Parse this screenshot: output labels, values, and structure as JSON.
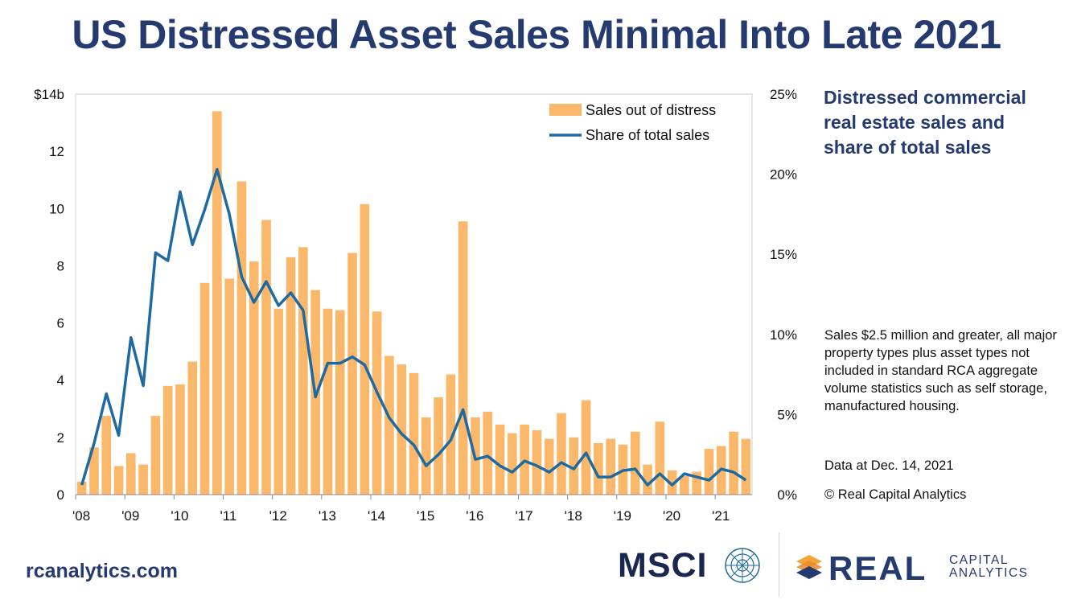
{
  "title": "US Distressed Asset Sales Minimal Into Late 2021",
  "subtitle": "Distressed commercial real estate sales and share of total sales",
  "note": "Sales $2.5 million and greater, all major property types plus asset types not included in standard RCA aggregate volume statistics such as self storage, manufactured housing.",
  "data_date": "Data at Dec. 14, 2021",
  "copyright": "© Real Capital Analytics",
  "website": "rcanalytics.com",
  "logos": {
    "msci": "MSCI",
    "rca_real": "REAL",
    "rca_capital": "CAPITAL",
    "rca_analytics": "ANALYTICS"
  },
  "colors": {
    "bar": "#fbb86a",
    "line": "#1f6aa0",
    "title": "#253a6e",
    "plot_border": "#cccccc"
  },
  "chart_data": {
    "type": "bar",
    "x_tick_labels": [
      "'08",
      "'09",
      "'10",
      "'11",
      "'12",
      "'13",
      "'14",
      "'15",
      "'16",
      "'17",
      "'18",
      "'19",
      "'20",
      "'21"
    ],
    "y_left": {
      "ylim": [
        0,
        14
      ],
      "tick_labels": [
        "0",
        "2",
        "4",
        "6",
        "8",
        "10",
        "12",
        "$14b"
      ]
    },
    "y_right": {
      "ylim": [
        0,
        25
      ],
      "tick_labels": [
        "0%",
        "5%",
        "10%",
        "15%",
        "20%",
        "25%"
      ]
    },
    "legend": {
      "position": "top-right",
      "entries": [
        "Sales out of distress",
        "Share of total sales"
      ]
    },
    "series": [
      {
        "name": "Sales out of distress",
        "type": "bar",
        "axis": "left",
        "unit": "$b",
        "values": [
          0.45,
          1.65,
          2.75,
          1.0,
          1.45,
          1.05,
          2.75,
          3.8,
          3.85,
          4.65,
          7.4,
          13.4,
          7.55,
          10.95,
          8.15,
          9.6,
          6.5,
          8.3,
          8.65,
          7.15,
          6.5,
          6.45,
          8.45,
          10.15,
          6.4,
          4.85,
          4.55,
          4.25,
          2.7,
          3.4,
          4.2,
          9.55,
          2.7,
          2.9,
          2.45,
          2.15,
          2.45,
          2.25,
          1.95,
          2.85,
          2.0,
          3.3,
          1.8,
          1.95,
          1.75,
          2.2,
          1.05,
          2.55,
          0.85,
          0.65,
          0.8,
          1.6,
          1.7,
          2.2,
          1.95
        ]
      },
      {
        "name": "Share of total sales",
        "type": "line",
        "axis": "right",
        "unit": "%",
        "values": [
          0.6,
          3.2,
          6.3,
          3.7,
          9.8,
          6.8,
          15.1,
          14.6,
          18.9,
          15.6,
          17.8,
          20.3,
          17.5,
          13.6,
          12.0,
          13.3,
          11.8,
          12.6,
          11.5,
          6.1,
          8.2,
          8.2,
          8.6,
          8.1,
          6.4,
          4.8,
          3.8,
          3.1,
          1.8,
          2.5,
          3.4,
          5.3,
          2.2,
          2.4,
          1.8,
          1.4,
          2.1,
          1.8,
          1.4,
          2.0,
          1.6,
          2.6,
          1.1,
          1.1,
          1.5,
          1.6,
          0.6,
          1.3,
          0.6,
          1.3,
          1.1,
          0.9,
          1.6,
          1.4,
          0.9
        ]
      }
    ]
  }
}
